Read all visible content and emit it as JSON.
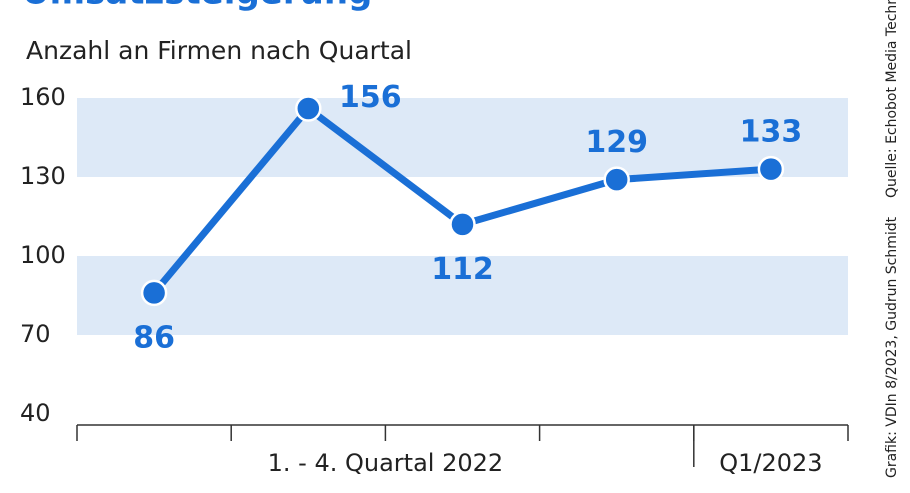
{
  "chart_data": {
    "type": "line",
    "title": "Umsatzsteigerung",
    "subtitle": "Anzahl an Firmen nach Quartal",
    "categories": [
      null,
      null,
      null,
      null,
      null
    ],
    "x_group_labels": [
      "1. - 4. Quartal 2022",
      "Q1/2023"
    ],
    "series": [
      {
        "name": null,
        "color": "#1a6fd6",
        "values": [
          86,
          156,
          112,
          129,
          133
        ]
      }
    ],
    "ylim": [
      40,
      160
    ],
    "yticks": [
      40,
      70,
      100,
      130,
      160
    ],
    "band_color": "#dde9f7",
    "credits": [
      "Grafik: VDIn 8/2023, Gudrun Schmidt",
      "Quelle: Echobot Media Technologies"
    ]
  }
}
